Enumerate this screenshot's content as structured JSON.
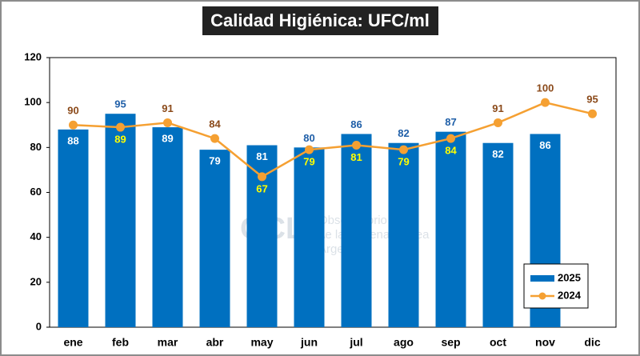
{
  "chart_data": {
    "type": "combo",
    "title": "Calidad Higiénica: UFC/ml",
    "categories": [
      "ene",
      "feb",
      "mar",
      "abr",
      "may",
      "jun",
      "jul",
      "ago",
      "sep",
      "oct",
      "nov",
      "dic"
    ],
    "series": [
      {
        "name": "2025",
        "type": "bar",
        "color": "#0070c0",
        "values": [
          88,
          95,
          89,
          79,
          81,
          80,
          86,
          82,
          87,
          82,
          86,
          null
        ]
      },
      {
        "name": "2024",
        "type": "line",
        "color": "#f5a032",
        "values": [
          90,
          89,
          91,
          84,
          67,
          79,
          81,
          79,
          84,
          91,
          100,
          95
        ]
      }
    ],
    "ylim": [
      0,
      120
    ],
    "yticks": [
      0,
      20,
      40,
      60,
      80,
      100,
      120
    ],
    "legend": "bottom-right",
    "watermark": [
      "OCLA",
      "Observatorio",
      "de la Cadena Láctea",
      "Argentina"
    ]
  }
}
